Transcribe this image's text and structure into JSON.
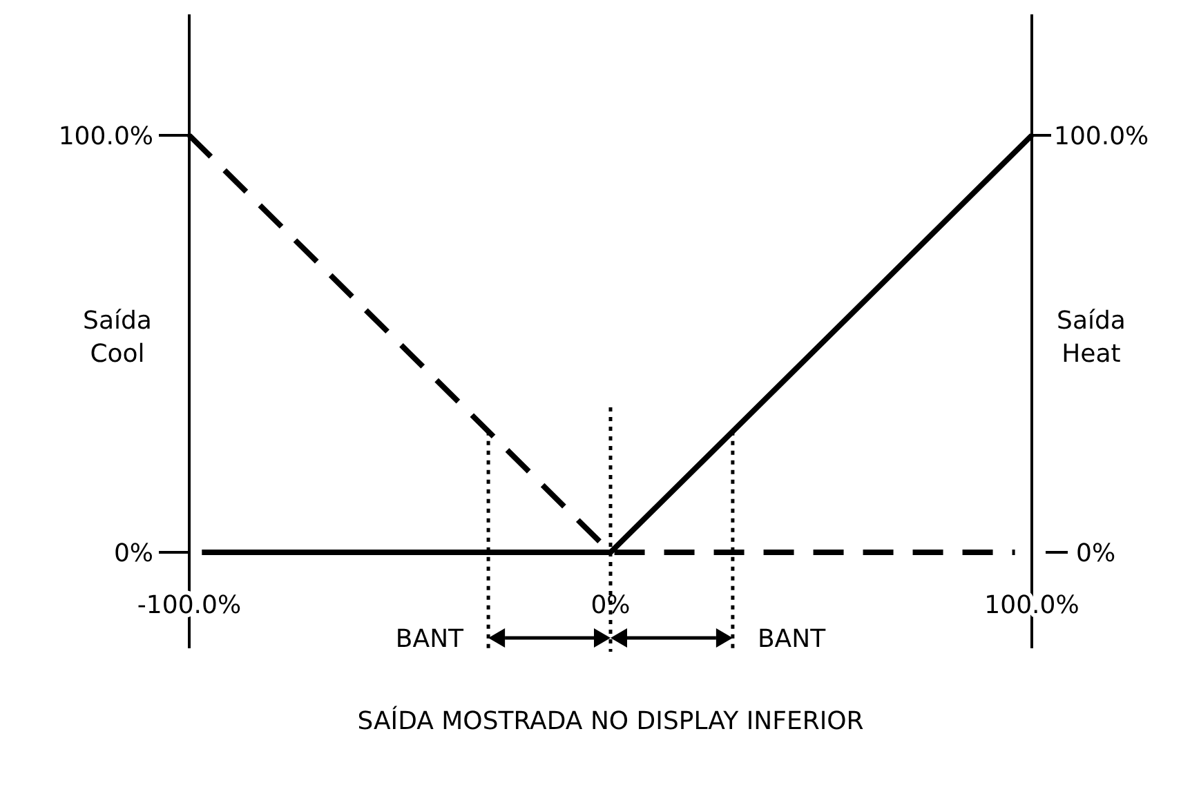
{
  "chart_data": {
    "type": "line",
    "xlabel": "SAÍDA MOSTRADA NO DISPLAY INFERIOR",
    "ylabel": "Saída Cool",
    "y2label": "Saída Heat",
    "xlim": [
      -100,
      100
    ],
    "xticks": [
      {
        "value": -100,
        "label": "-100.0%"
      },
      {
        "value": 0,
        "label": "0%"
      },
      {
        "value": 100,
        "label": "100.0%"
      }
    ],
    "ylim": [
      -23,
      129
    ],
    "yticks": [
      {
        "value": 0,
        "label": "0%"
      },
      {
        "value": 100,
        "label": "100.0%"
      }
    ],
    "y2lim": [
      -23,
      129
    ],
    "y2ticks": [
      {
        "value": 0,
        "label": "0%"
      },
      {
        "value": 100,
        "label": "100.0%"
      }
    ],
    "grid": false,
    "series": [
      {
        "color": "#000000",
        "line_style": "dashed",
        "x": [
          -100,
          0,
          96
        ],
        "values": [
          100,
          0,
          0
        ]
      },
      {
        "color": "#000000",
        "line_style": "solid",
        "x": [
          -97,
          0,
          100
        ],
        "values": [
          0,
          0,
          100
        ]
      }
    ],
    "ref_lines": [
      {
        "axis": "x",
        "value": -29,
        "label": "BANT",
        "line_style": "dotted",
        "color": "#000000"
      },
      {
        "axis": "x",
        "value": 0,
        "label": null,
        "line_style": "dotted",
        "color": "#000000"
      },
      {
        "axis": "x",
        "value": 29,
        "label": "BANT",
        "line_style": "dotted",
        "color": "#000000"
      }
    ]
  }
}
